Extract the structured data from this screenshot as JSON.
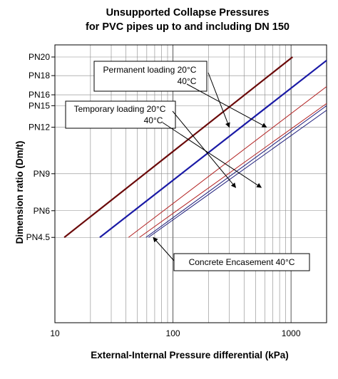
{
  "chart_data": {
    "type": "line",
    "title": "Unsupported Collapse Pressures",
    "subtitle": "for PVC pipes up to and including DN 150",
    "xlabel": "External-Internal Pressure differential (kPa)",
    "ylabel": "Dimension ratio (Dm/t)",
    "xscale": "log",
    "yscale": "log",
    "xlim": [
      10,
      2000
    ],
    "ylim": [
      11,
      51
    ],
    "x_ticks": [
      10,
      100,
      1000
    ],
    "x_tick_labels": [
      "10",
      "100",
      "1000"
    ],
    "y_ticks": [
      {
        "label": "PN20",
        "value": 51
      },
      {
        "label": "PN18",
        "value": 45.8
      },
      {
        "label": "PN16",
        "value": 41
      },
      {
        "label": "PN15",
        "value": 38.5
      },
      {
        "label": "PN12",
        "value": 34
      },
      {
        "label": "PN9",
        "value": 26
      },
      {
        "label": "PN6",
        "value": 21
      },
      {
        "label": "PN4.5",
        "value": 18
      }
    ],
    "grid": true,
    "series": [
      {
        "group": "Permanent loading",
        "temperature": "20°C",
        "color": "#6b0a0a",
        "width": 2.2,
        "x": [
          12,
          1030
        ],
        "y": [
          18,
          51
        ]
      },
      {
        "group": "Permanent loading",
        "temperature": "40°C",
        "color": "#1a1aa6",
        "width": 2.2,
        "x": [
          24,
          2000
        ],
        "y": [
          18,
          50
        ]
      },
      {
        "group": "Temporary loading",
        "temperature": "20°C",
        "color": "#b22020",
        "width": 1,
        "x": [
          42,
          2000
        ],
        "y": [
          18,
          43
        ]
      },
      {
        "group": "Temporary loading",
        "temperature": "40°C",
        "color": "#b22020",
        "width": 1,
        "x": [
          52,
          2000
        ],
        "y": [
          18,
          39
        ]
      },
      {
        "group": "Concrete Encasement",
        "temperature": "40°C",
        "color": "#1a1a7a",
        "width": 1,
        "x": [
          59,
          2000
        ],
        "y": [
          18,
          38.5
        ]
      },
      {
        "group": "Concrete Encasement",
        "temperature": "40°C",
        "color": "#1a1a7a",
        "width": 1,
        "x": [
          62,
          2000
        ],
        "y": [
          18,
          37.5
        ]
      }
    ],
    "annotations": [
      {
        "box_lines": [
          "Permanent loading 20°C",
          "40°C"
        ],
        "arrow_targets": [
          [
            300,
            34
          ],
          [
            620,
            34
          ]
        ]
      },
      {
        "box_lines": [
          "Temporary loading 20°C",
          "40°C"
        ],
        "arrow_targets": [
          [
            340,
            24
          ],
          [
            560,
            24
          ]
        ]
      },
      {
        "box_lines": [
          "Concrete Encasement 40°C"
        ],
        "arrow_targets": [
          [
            68,
            18
          ]
        ]
      }
    ]
  }
}
